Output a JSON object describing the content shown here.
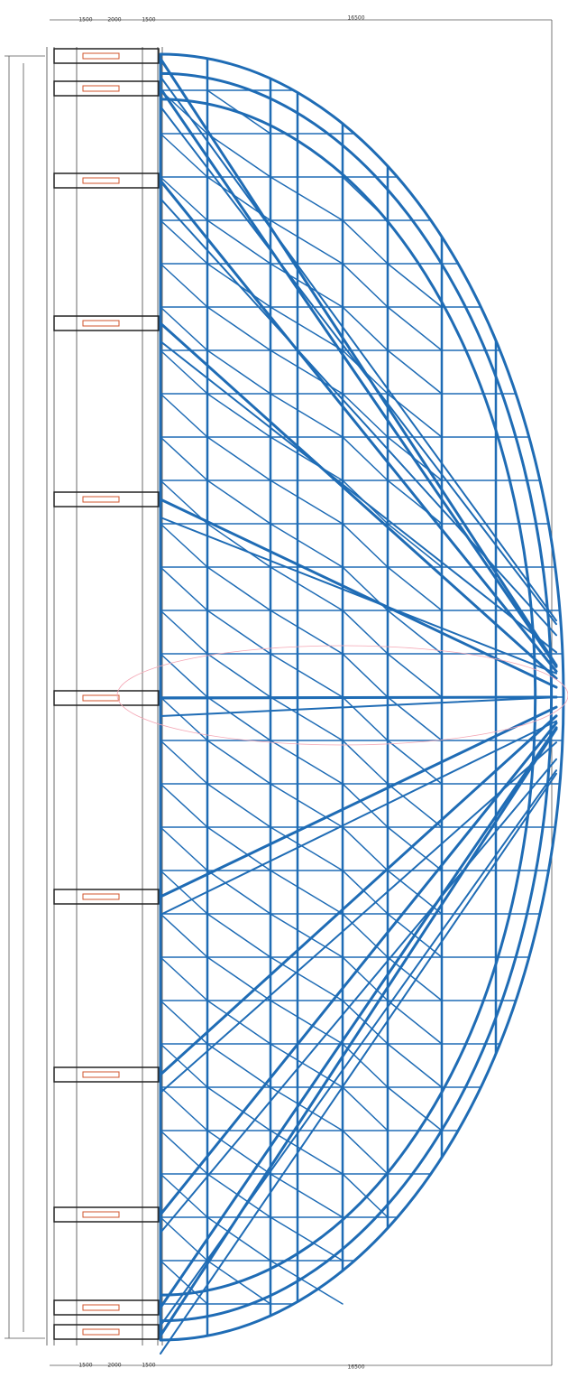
{
  "dimensions": {
    "top": [
      "1500",
      "2000",
      "1500",
      "16500"
    ],
    "bottom": [
      "1500",
      "2000",
      "1500",
      "16500"
    ]
  }
}
